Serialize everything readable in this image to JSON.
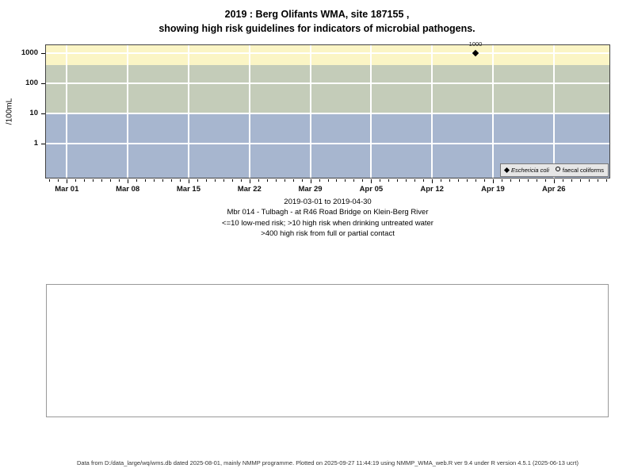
{
  "title": {
    "line1": "2019 : Berg Olifants WMA, site 187155 ,",
    "line2": "showing high risk guidelines for indicators of microbial pathogens."
  },
  "chart_data": {
    "type": "scatter",
    "title": "2019 : Berg Olifants WMA, site 187155 , showing high risk guidelines for indicators of microbial pathogens.",
    "xlabel": "",
    "ylabel": "/100mL",
    "y_scale": "log",
    "ylim": [
      0.07,
      1800
    ],
    "grid": true,
    "y_ticks": [
      {
        "value": 1000,
        "label": "1000"
      },
      {
        "value": 100,
        "label": "100"
      },
      {
        "value": 10,
        "label": "10"
      },
      {
        "value": 1,
        "label": "1"
      }
    ],
    "x_ticks": [
      {
        "day": 0,
        "label": "Mar 01"
      },
      {
        "day": 7,
        "label": "Mar 08"
      },
      {
        "day": 14,
        "label": "Mar 15"
      },
      {
        "day": 21,
        "label": "Mar 22"
      },
      {
        "day": 28,
        "label": "Mar 29"
      },
      {
        "day": 35,
        "label": "Apr 05"
      },
      {
        "day": 42,
        "label": "Apr 12"
      },
      {
        "day": 49,
        "label": "Apr 19"
      },
      {
        "day": 56,
        "label": "Apr 26"
      }
    ],
    "x_range": {
      "start": "2019-03-01",
      "end": "2019-04-30",
      "days": 60
    },
    "bands": [
      {
        "name": "high-risk-contact",
        "min": 400,
        "max": null,
        "color": "#FBF5C5",
        "meaning": ">400 high risk from full or partial contact"
      },
      {
        "name": "high-risk-drinking",
        "min": 10,
        "max": 400,
        "color": "#C4CCB9",
        "meaning": ">10 high risk when drinking untreated water"
      },
      {
        "name": "low-med-risk",
        "min": null,
        "max": 10,
        "color": "#A7B6CF",
        "meaning": "<=10 low-med risk"
      }
    ],
    "series": [
      {
        "name": "Eschericia coli",
        "marker": "diamond",
        "color": "#000000",
        "points": [
          {
            "date": "2019-04-17",
            "day": 47,
            "value": 1000,
            "label": "1000"
          }
        ]
      },
      {
        "name": "faecal coliforms",
        "marker": "circle",
        "color": "#000000",
        "points": []
      }
    ],
    "legend": {
      "position": "bottom-right",
      "items": [
        {
          "symbol": "diamond",
          "label": "Eschericia coli"
        },
        {
          "symbol": "circle",
          "label": "faecal coliforms"
        }
      ]
    }
  },
  "caption": {
    "line1": "2019-03-01 to 2019-04-30",
    "line2": "Mbr 014 - Tulbagh - at R46 Road Bridge on Klein-Berg River",
    "line3": "<=10 low-med risk; >10 high risk when drinking untreated water",
    "line4": ">400 high risk from full or partial contact"
  },
  "footer": "Data from D:/data_large/wq/wms.db dated 2025-08-01, mainly NMMP programme. Plotted on 2025-09-27 11:44:19 using NMMP_WMA_web.R ver 9.4 under R version 4.5.1 (2025-06-13 ucrt)"
}
